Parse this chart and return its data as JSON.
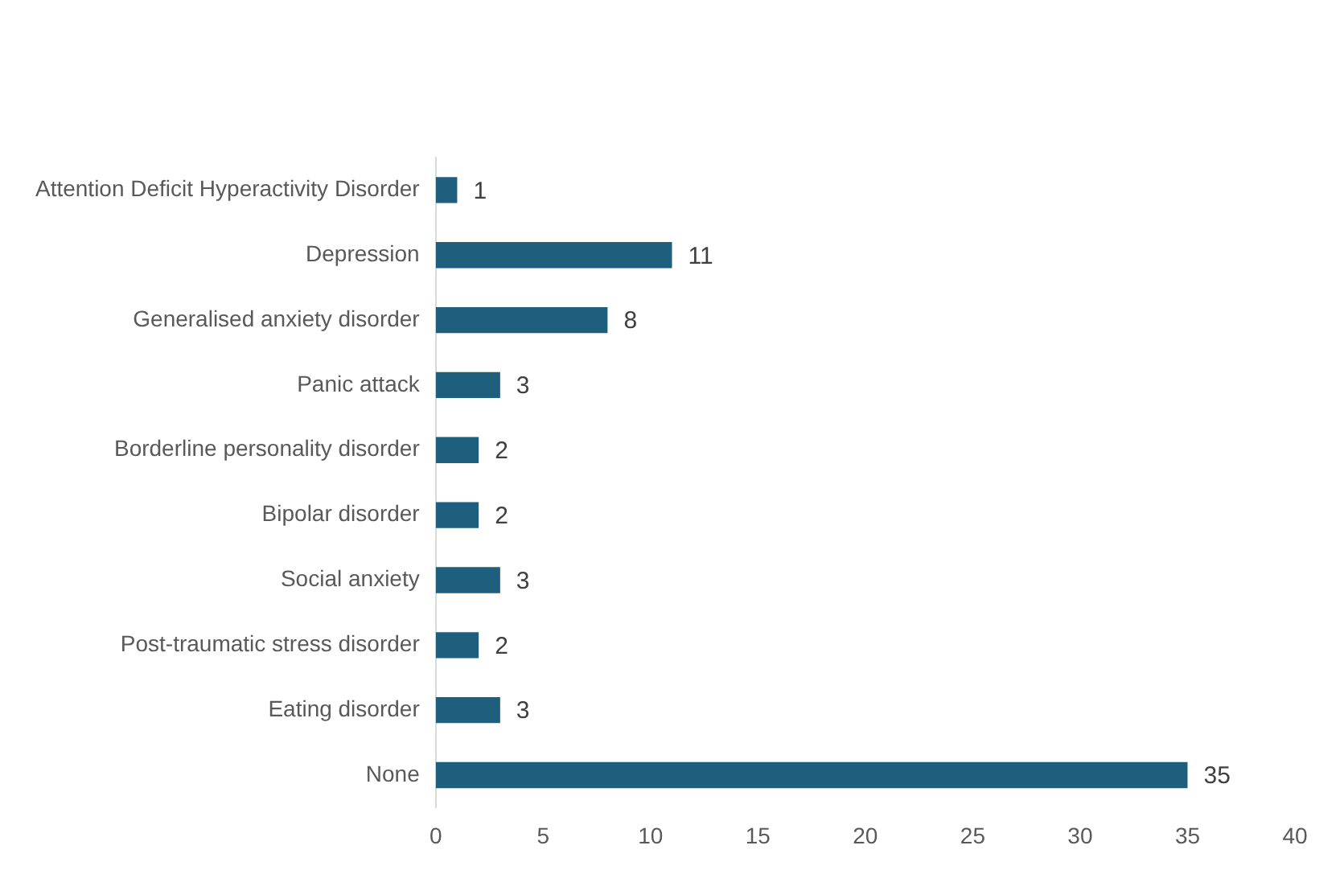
{
  "chart_data": {
    "type": "bar",
    "orientation": "horizontal",
    "categories": [
      "Attention Deficit Hyperactivity Disorder",
      "Depression",
      "Generalised anxiety disorder",
      "Panic attack",
      "Borderline personality disorder",
      "Bipolar disorder",
      "Social anxiety",
      "Post-traumatic stress disorder",
      "Eating disorder",
      "None"
    ],
    "values": [
      1,
      11,
      8,
      3,
      2,
      2,
      3,
      2,
      3,
      35
    ],
    "color": "#1f5f7e",
    "xlim": [
      0,
      40
    ],
    "xticks": [
      0,
      5,
      10,
      15,
      20,
      25,
      30,
      35,
      40
    ],
    "grid": false,
    "legend": false,
    "data_labels": true
  }
}
